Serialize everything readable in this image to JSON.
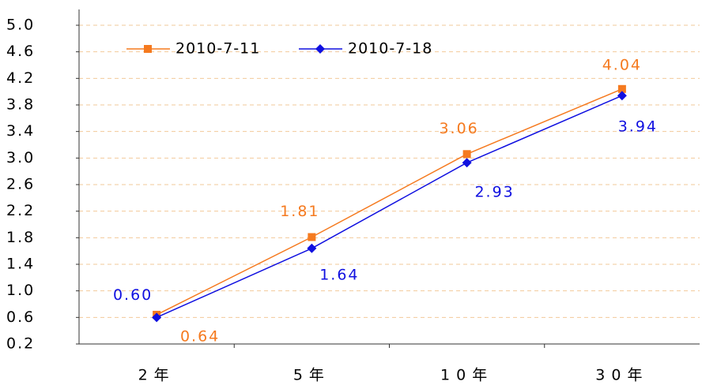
{
  "chart_data": {
    "type": "line",
    "categories": [
      "2年",
      "5年",
      "10年",
      "30年"
    ],
    "series": [
      {
        "name": "2010-7-11",
        "color": "#f57a1f",
        "marker": "square",
        "values": [
          0.64,
          1.81,
          3.06,
          4.04
        ],
        "value_labels": [
          "0.64",
          "1.81",
          "3.06",
          "4.04"
        ]
      },
      {
        "name": "2010-7-18",
        "color": "#1010e0",
        "marker": "diamond",
        "values": [
          0.6,
          1.64,
          2.93,
          3.94
        ],
        "value_labels": [
          "0.60",
          "1.64",
          "2.93",
          "3.94"
        ]
      }
    ],
    "ylim": [
      0.2,
      5.0
    ],
    "yticks": [
      0.2,
      0.6,
      {
        "value": 1,
        "label": "1.0"
      },
      1.4,
      1.8,
      2.2,
      2.6,
      {
        "value": 3,
        "label": "3.0"
      },
      3.4,
      3.8,
      4.2,
      4.6,
      {
        "value": 5,
        "label": "5.0"
      }
    ],
    "grid": true,
    "legend": "upper left"
  }
}
